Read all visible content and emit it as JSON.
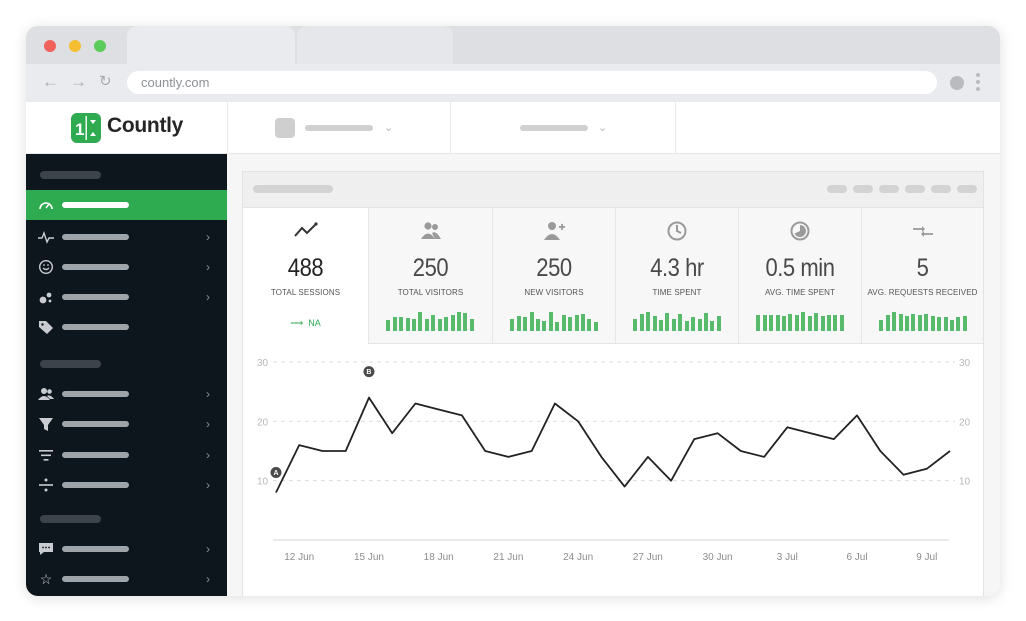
{
  "browser": {
    "url": "countly.com",
    "back_icon": "arrow-left-icon",
    "forward_icon": "arrow-right-icon",
    "reload_icon": "reload-icon"
  },
  "brand": {
    "name": "Countly",
    "color": "#2eaa51"
  },
  "metrics": [
    {
      "icon": "trend-line-icon",
      "value": "488",
      "label": "TOTAL SESSIONS",
      "trend": "NA",
      "active": true,
      "bars": []
    },
    {
      "icon": "users-icon",
      "value": "250",
      "label": "TOTAL VISITORS",
      "active": false,
      "bars": [
        0.55,
        0.7,
        0.7,
        0.65,
        0.6,
        0.95,
        0.6,
        0.8,
        0.6,
        0.7,
        0.8,
        0.95,
        0.9,
        0.6
      ]
    },
    {
      "icon": "user-plus-icon",
      "value": "250",
      "label": "NEW VISITORS",
      "active": false,
      "bars": [
        0.6,
        0.75,
        0.7,
        0.95,
        0.6,
        0.5,
        0.95,
        0.45,
        0.8,
        0.7,
        0.8,
        0.85,
        0.6,
        0.45
      ]
    },
    {
      "icon": "clock-icon",
      "value": "4.3 hr",
      "label": "TIME SPENT",
      "active": false,
      "bars": [
        0.6,
        0.85,
        0.95,
        0.75,
        0.55,
        0.9,
        0.6,
        0.85,
        0.5,
        0.7,
        0.6,
        0.9,
        0.5,
        0.75
      ]
    },
    {
      "icon": "pie-clock-icon",
      "value": "0.5 min",
      "label": "AVG. TIME SPENT",
      "active": false,
      "bars": [
        0.8,
        0.8,
        0.8,
        0.8,
        0.75,
        0.85,
        0.8,
        0.95,
        0.75,
        0.9,
        0.75,
        0.8,
        0.8,
        0.8
      ]
    },
    {
      "icon": "arrows-merge-icon",
      "value": "5",
      "label": "AVG. REQUESTS RECEIVED",
      "active": false,
      "bars": [
        0.55,
        0.8,
        0.95,
        0.85,
        0.75,
        0.85,
        0.8,
        0.85,
        0.75,
        0.7,
        0.7,
        0.55,
        0.7,
        0.75
      ]
    }
  ],
  "chart_data": {
    "type": "line",
    "x": [
      "11 Jun",
      "12 Jun",
      "13 Jun",
      "14 Jun",
      "15 Jun",
      "16 Jun",
      "17 Jun",
      "18 Jun",
      "19 Jun",
      "20 Jun",
      "21 Jun",
      "22 Jun",
      "23 Jun",
      "24 Jun",
      "25 Jun",
      "26 Jun",
      "27 Jun",
      "28 Jun",
      "29 Jun",
      "30 Jun",
      "1 Jul",
      "2 Jul",
      "3 Jul",
      "4 Jul",
      "5 Jul",
      "6 Jul",
      "7 Jul",
      "8 Jul",
      "9 Jul",
      "10 Jul"
    ],
    "values": [
      8,
      16,
      15,
      15,
      24,
      18,
      23,
      22,
      21,
      15,
      14,
      15,
      23,
      20,
      14,
      9,
      14,
      10,
      17,
      18,
      15,
      14,
      19,
      18,
      17,
      21,
      15,
      11,
      12,
      15
    ],
    "xtick_labels": [
      "12 Jun",
      "15 Jun",
      "18 Jun",
      "21 Jun",
      "24 Jun",
      "27 Jun",
      "30 Jun",
      "3 Jul",
      "6 Jul",
      "9 Jul"
    ],
    "yticks": [
      10,
      20,
      30
    ],
    "ylim": [
      0,
      30
    ],
    "grid": true,
    "annotations": [
      {
        "label": "A",
        "x": "11 Jun"
      },
      {
        "label": "B",
        "x": "15 Jun"
      }
    ],
    "title": "",
    "xlabel": "",
    "ylabel": ""
  }
}
